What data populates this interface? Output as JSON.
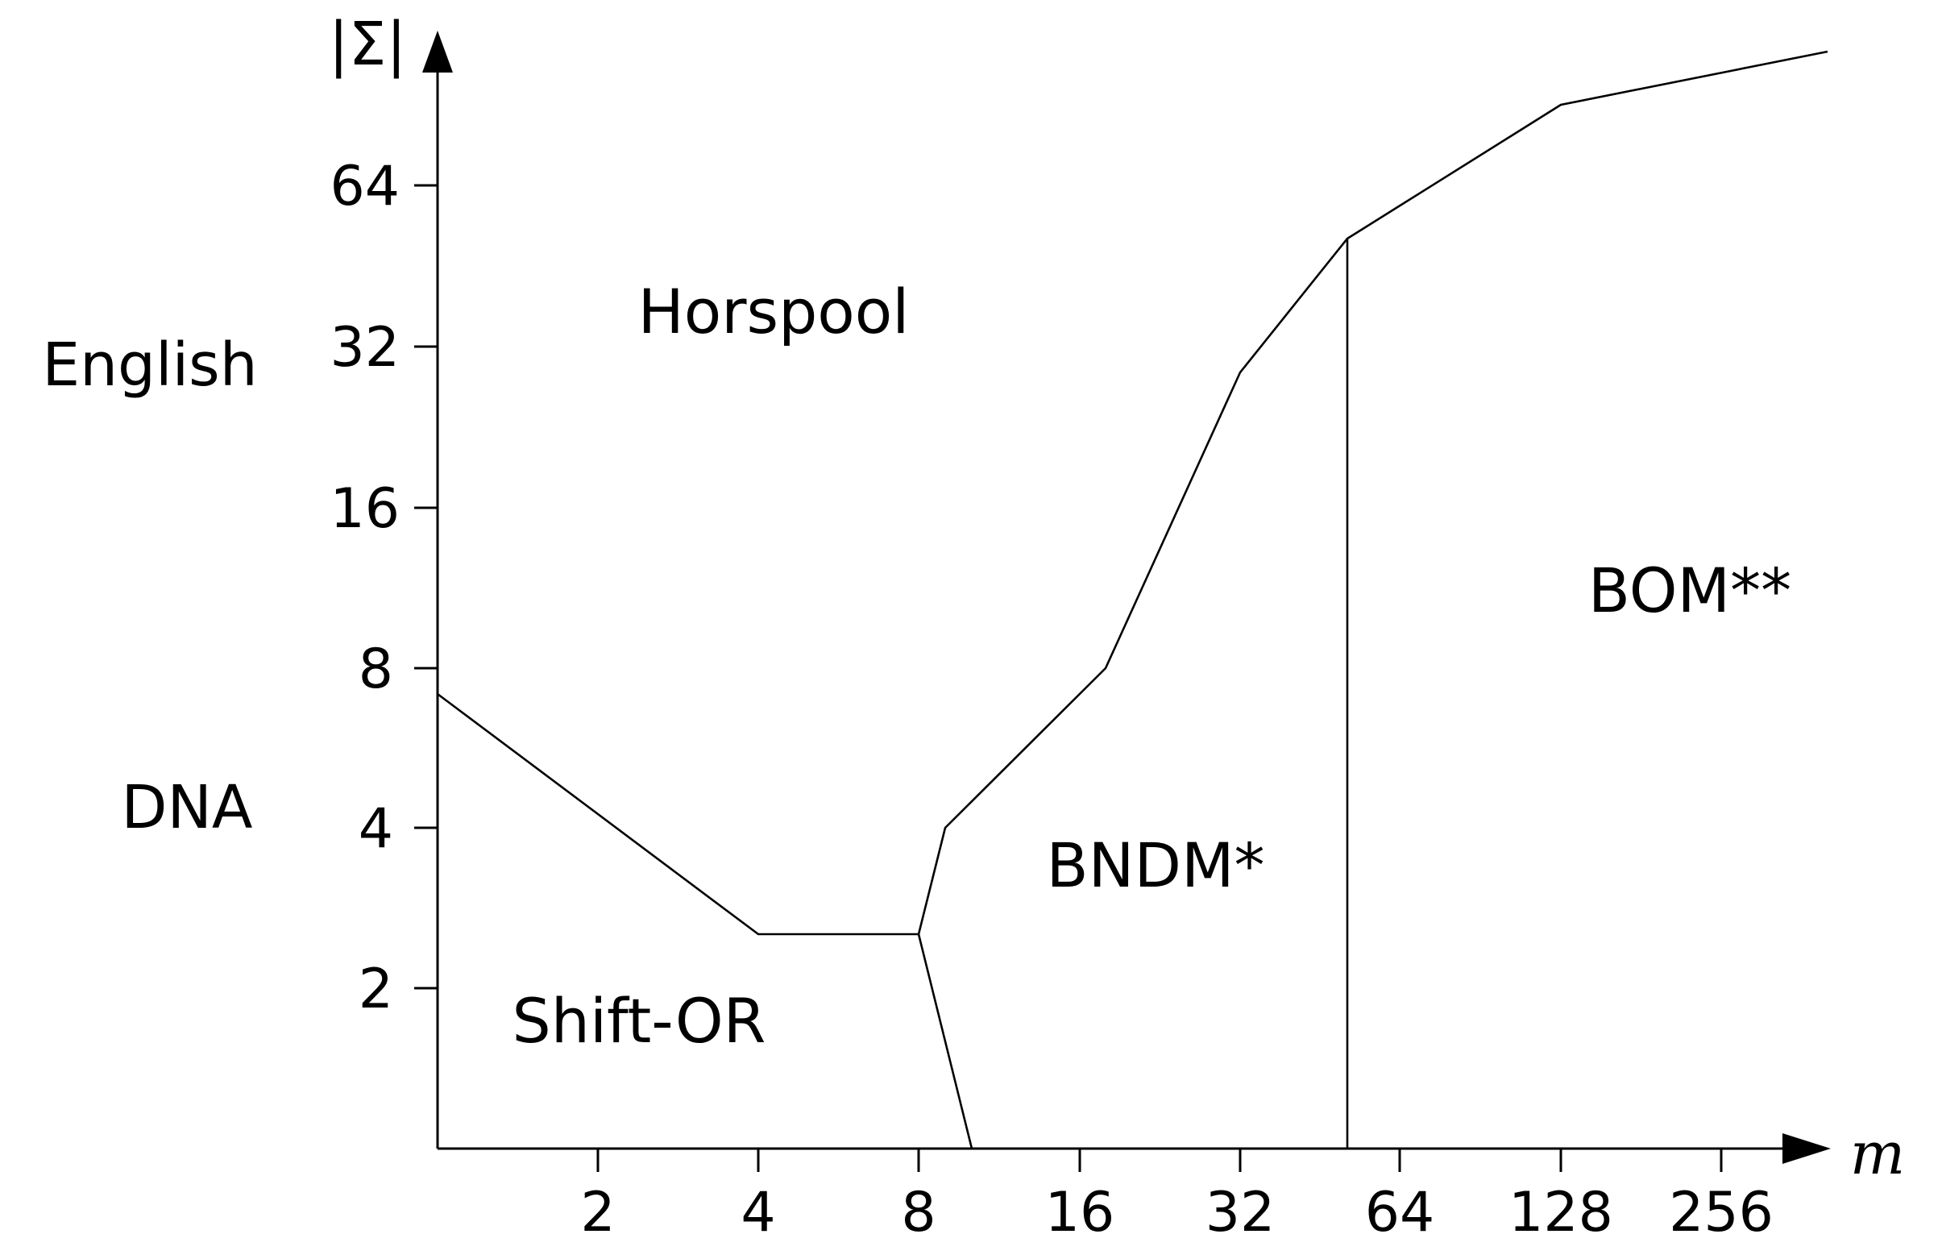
{
  "axes": {
    "x_title": "m",
    "y_title": "|Σ|",
    "x_ticks": [
      "2",
      "4",
      "8",
      "16",
      "32",
      "64",
      "128",
      "256"
    ],
    "y_ticks": [
      "2",
      "4",
      "8",
      "16",
      "32",
      "64"
    ]
  },
  "side_labels": {
    "english": "English",
    "dna": "DNA"
  },
  "regions": {
    "horspool": "Horspool",
    "shift_or": "Shift-OR",
    "bndm": "BNDM*",
    "bom": "BOM**"
  }
}
